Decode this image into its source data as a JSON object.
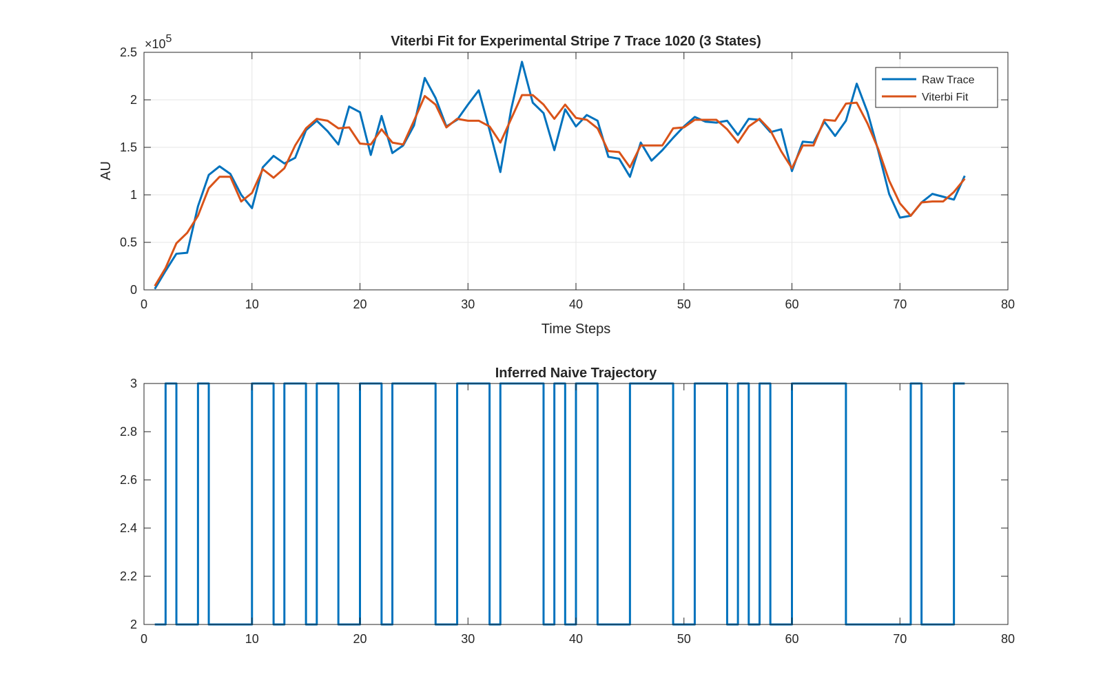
{
  "chart_data": [
    {
      "type": "line",
      "title": "Viterbi Fit for Experimental Stripe 7 Trace 1020 (3 States)",
      "xlabel": "Time Steps",
      "ylabel": "AU",
      "y_exponent_label": "×10",
      "y_exponent_power": "5",
      "xlim": [
        0,
        80
      ],
      "ylim": [
        0,
        250000
      ],
      "xticks": [
        0,
        10,
        20,
        30,
        40,
        50,
        60,
        70,
        80
      ],
      "xtick_labels": [
        "0",
        "10",
        "20",
        "30",
        "40",
        "50",
        "60",
        "70",
        "80"
      ],
      "yticks": [
        0,
        50000,
        100000,
        150000,
        200000,
        250000
      ],
      "ytick_labels": [
        "0",
        "0.5",
        "1",
        "1.5",
        "2",
        "2.5"
      ],
      "grid": true,
      "legend_position": "top-right",
      "x": [
        1,
        2,
        3,
        4,
        5,
        6,
        7,
        8,
        9,
        10,
        11,
        12,
        13,
        14,
        15,
        16,
        17,
        18,
        19,
        20,
        21,
        22,
        23,
        24,
        25,
        26,
        27,
        28,
        29,
        30,
        31,
        32,
        33,
        34,
        35,
        36,
        37,
        38,
        39,
        40,
        41,
        42,
        43,
        44,
        45,
        46,
        47,
        48,
        49,
        50,
        51,
        52,
        53,
        54,
        55,
        56,
        57,
        58,
        59,
        60,
        61,
        62,
        63,
        64,
        65,
        66,
        67,
        68,
        69,
        70,
        71,
        72,
        73,
        74,
        75,
        76
      ],
      "series": [
        {
          "name": "Raw Trace",
          "color": "#0072BD",
          "values": [
            1000,
            20000,
            38000,
            39000,
            88000,
            121000,
            130000,
            122000,
            100000,
            86000,
            129000,
            141000,
            133000,
            139000,
            168000,
            178000,
            167000,
            153000,
            193000,
            187000,
            142000,
            183000,
            144000,
            152000,
            173000,
            223000,
            202000,
            172000,
            179000,
            195000,
            210000,
            168000,
            124000,
            190000,
            240000,
            197000,
            186000,
            147000,
            190000,
            172000,
            184000,
            178000,
            140000,
            138000,
            119000,
            155000,
            136000,
            147000,
            160000,
            172000,
            182000,
            177000,
            176000,
            178000,
            163000,
            180000,
            179000,
            166000,
            169000,
            125000,
            156000,
            155000,
            177000,
            162000,
            178000,
            217000,
            187000,
            146000,
            101000,
            76000,
            78000,
            92000,
            101000,
            98000,
            95000,
            120000
          ]
        },
        {
          "name": "Viterbi Fit",
          "color": "#D95319",
          "values": [
            4000,
            23000,
            49000,
            60000,
            78000,
            107000,
            119000,
            119000,
            93000,
            102000,
            127000,
            118000,
            128000,
            152000,
            170000,
            180000,
            178000,
            170000,
            171000,
            154000,
            153000,
            169000,
            155000,
            153000,
            178000,
            204000,
            195000,
            171000,
            180000,
            178000,
            178000,
            172000,
            155000,
            180000,
            205000,
            205000,
            195000,
            180000,
            195000,
            181000,
            179000,
            170000,
            146000,
            145000,
            129000,
            152000,
            152000,
            152000,
            170000,
            171000,
            179000,
            179000,
            179000,
            169000,
            155000,
            172000,
            180000,
            168000,
            146000,
            128000,
            152000,
            152000,
            179000,
            178000,
            196000,
            197000,
            175000,
            148000,
            115000,
            91000,
            78000,
            92000,
            93000,
            93000,
            103000,
            117000
          ]
        }
      ]
    },
    {
      "type": "line",
      "title": "Inferred Naive Trajectory",
      "xlabel": "",
      "ylabel": "",
      "xlim": [
        0,
        80
      ],
      "ylim": [
        2,
        3
      ],
      "xticks": [
        0,
        10,
        20,
        30,
        40,
        50,
        60,
        70,
        80
      ],
      "xtick_labels": [
        "0",
        "10",
        "20",
        "30",
        "40",
        "50",
        "60",
        "70",
        "80"
      ],
      "yticks": [
        2,
        2.2,
        2.4,
        2.6,
        2.8,
        3
      ],
      "ytick_labels": [
        "2",
        "2.2",
        "2.4",
        "2.6",
        "2.8",
        "3"
      ],
      "grid": false,
      "step": true,
      "x": [
        1,
        2,
        3,
        4,
        5,
        6,
        7,
        8,
        9,
        10,
        11,
        12,
        13,
        14,
        15,
        16,
        17,
        18,
        19,
        20,
        21,
        22,
        23,
        24,
        25,
        26,
        27,
        28,
        29,
        30,
        31,
        32,
        33,
        34,
        35,
        36,
        37,
        38,
        39,
        40,
        41,
        42,
        43,
        44,
        45,
        46,
        47,
        48,
        49,
        50,
        51,
        52,
        53,
        54,
        55,
        56,
        57,
        58,
        59,
        60,
        61,
        62,
        63,
        64,
        65,
        66,
        67,
        68,
        69,
        70,
        71,
        72,
        73,
        74,
        75,
        76
      ],
      "series": [
        {
          "color": "#0072BD",
          "values": [
            2,
            3,
            2,
            2,
            3,
            2,
            2,
            2,
            2,
            3,
            3,
            2,
            3,
            3,
            2,
            3,
            3,
            2,
            2,
            3,
            3,
            2,
            3,
            3,
            3,
            3,
            2,
            2,
            3,
            3,
            3,
            2,
            3,
            3,
            3,
            3,
            2,
            3,
            2,
            3,
            3,
            2,
            2,
            2,
            3,
            3,
            3,
            3,
            2,
            2,
            3,
            3,
            3,
            2,
            3,
            2,
            3,
            2,
            2,
            3,
            3,
            3,
            3,
            3,
            2,
            2,
            2,
            2,
            2,
            2,
            3,
            2,
            2,
            2,
            3,
            3
          ]
        }
      ]
    }
  ]
}
